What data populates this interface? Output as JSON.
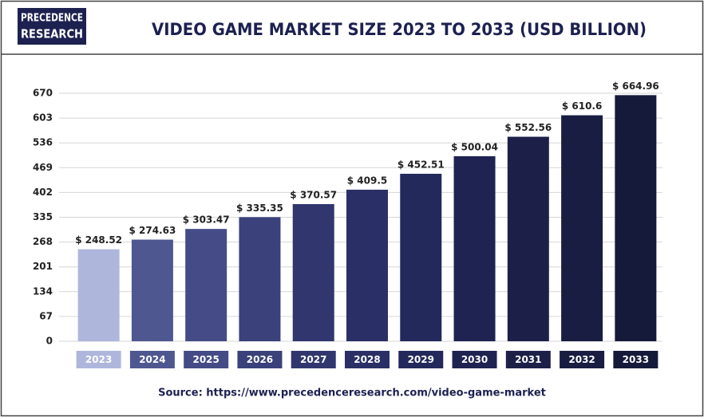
{
  "logo": {
    "line1": "PRECEDENCE",
    "line2": "RESEARCH"
  },
  "chart_data": {
    "type": "bar",
    "title": "VIDEO GAME MARKET SIZE 2023 TO 2033 (USD BILLION)",
    "categories": [
      "2023",
      "2024",
      "2025",
      "2026",
      "2027",
      "2028",
      "2029",
      "2030",
      "2031",
      "2032",
      "2033"
    ],
    "values": [
      248.52,
      274.63,
      303.47,
      335.35,
      370.57,
      409.5,
      452.51,
      500.04,
      552.56,
      610.6,
      664.96
    ],
    "value_labels": [
      "$ 248.52",
      "$ 274.63",
      "$ 303.47",
      "$ 335.35",
      "$ 370.57",
      "$ 409.5",
      "$ 452.51",
      "$ 500.04",
      "$ 552.56",
      "$ 610.6",
      "$ 664.96"
    ],
    "colors": [
      "#aeb6dc",
      "#4f5790",
      "#444b86",
      "#3a417b",
      "#31376e",
      "#2a3065",
      "#23295b",
      "#1f2351",
      "#1c2049",
      "#191d42",
      "#161a3a"
    ],
    "ylim": [
      0,
      670
    ],
    "yticks": [
      0,
      67,
      134,
      201,
      268,
      335,
      402,
      469,
      536,
      603,
      670
    ],
    "grid": true,
    "source": "Source: https://www.precedenceresearch.com/video-game-market"
  }
}
